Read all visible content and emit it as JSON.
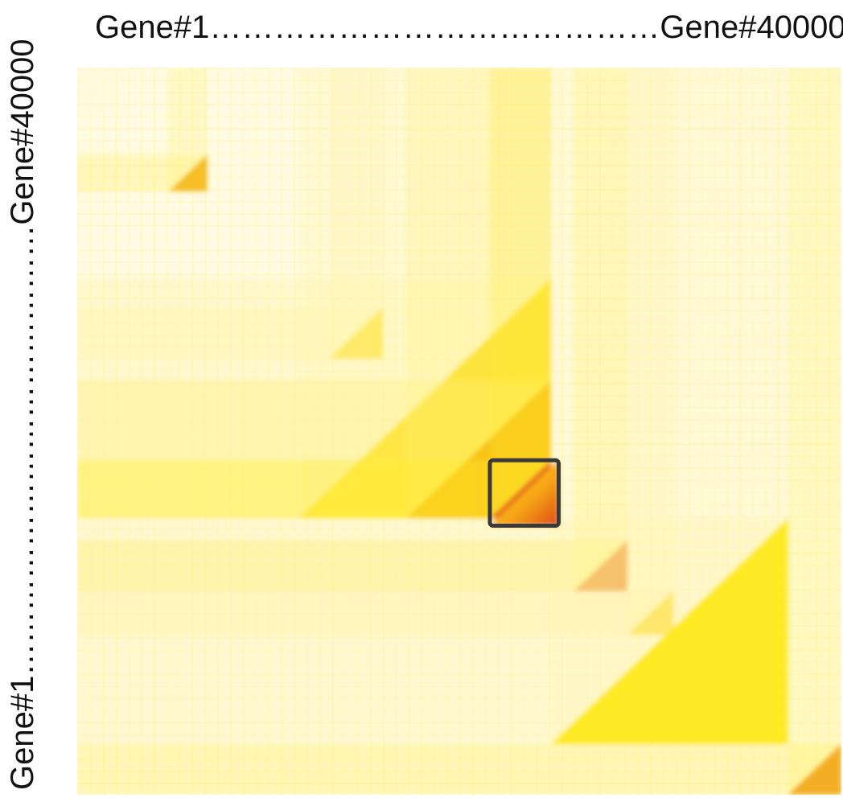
{
  "chart_data": {
    "type": "heatmap",
    "title": "",
    "x_axis": {
      "start_label": "Gene#1",
      "end_label": "Gene#40000",
      "label": "Gene#1……………………………………Gene#40000"
    },
    "y_axis": {
      "start_label": "Gene#1",
      "end_label": "Gene#40000",
      "label": "Gene#1……………………………………Gene#40000"
    },
    "colormap": [
      "#fffadf",
      "#fff3a8",
      "#ffe80a",
      "#f5b30f",
      "#e35a1a"
    ],
    "blocks": [
      {
        "start": 0.0,
        "end": 0.06,
        "intensity": 0.05
      },
      {
        "start": 0.12,
        "end": 0.17,
        "intensity": 0.75
      },
      {
        "start": 0.33,
        "end": 0.4,
        "intensity": 0.55
      },
      {
        "start": 0.29,
        "end": 0.62,
        "intensity": 0.55
      },
      {
        "start": 0.43,
        "end": 0.62,
        "intensity": 0.7
      },
      {
        "start": 0.54,
        "end": 0.62,
        "intensity": 1.0
      },
      {
        "start": 0.65,
        "end": 0.72,
        "intensity": 0.9
      },
      {
        "start": 0.72,
        "end": 0.78,
        "intensity": 0.6
      },
      {
        "start": 0.62,
        "end": 0.93,
        "intensity": 0.5
      },
      {
        "start": 0.93,
        "end": 1.0,
        "intensity": 0.8
      }
    ],
    "highlight": {
      "start": 0.54,
      "end": 0.63,
      "stroke": "#3a3a3a"
    }
  }
}
